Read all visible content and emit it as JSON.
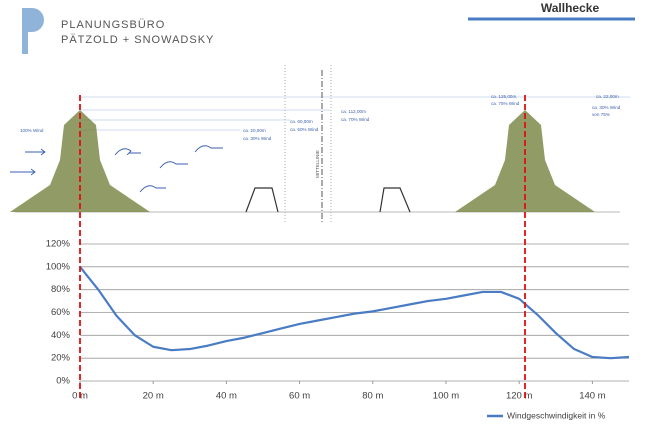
{
  "header": {
    "company_line1": "PLANUNGSBÜRO",
    "company_line2": "PÄTZOLD + SNOWADSKY",
    "title": "Wallhecke"
  },
  "diagram": {
    "notes": [
      "100% Wind",
      "ca. 20,00m",
      "ca. 30% Wind",
      "ca. 60,00m",
      "ca. 50% Wind",
      "ca. 112,00m",
      "ca. 70% Wind",
      "MITTELLINIE",
      "ca. 125,00m",
      "ca. 75% Wind",
      "ca. 22,00m",
      "ca. 30% Wind",
      "von 75%"
    ]
  },
  "chart_data": {
    "type": "line",
    "x": [
      0,
      5,
      10,
      15,
      20,
      25,
      30,
      35,
      40,
      45,
      50,
      55,
      60,
      65,
      70,
      75,
      80,
      85,
      90,
      95,
      100,
      105,
      110,
      115,
      120,
      125,
      130,
      135,
      140,
      145,
      150
    ],
    "series": [
      {
        "name": "Windgeschwindigkeit in %",
        "color": "#4a7cc4",
        "values": [
          100,
          80,
          57,
          40,
          30,
          27,
          28,
          31,
          35,
          38,
          42,
          46,
          50,
          53,
          56,
          59,
          61,
          64,
          67,
          70,
          72,
          75,
          78,
          78,
          72,
          58,
          42,
          28,
          21,
          20,
          21
        ]
      }
    ],
    "xlim": [
      0,
      150
    ],
    "ylim": [
      0,
      120
    ],
    "xticks": [
      {
        "value": 0,
        "label": "0 m"
      },
      {
        "value": 20,
        "label": "20 m"
      },
      {
        "value": 40,
        "label": "40 m"
      },
      {
        "value": 60,
        "label": "60 m"
      },
      {
        "value": 80,
        "label": "80 m"
      },
      {
        "value": 100,
        "label": "100 m"
      },
      {
        "value": 120,
        "label": "120 m"
      },
      {
        "value": 140,
        "label": "140 m"
      }
    ],
    "yticks": [
      {
        "value": 0,
        "label": "0%"
      },
      {
        "value": 20,
        "label": "20%"
      },
      {
        "value": 40,
        "label": "40%"
      },
      {
        "value": 60,
        "label": "60%"
      },
      {
        "value": 80,
        "label": "80%"
      },
      {
        "value": 100,
        "label": "100%"
      },
      {
        "value": 120,
        "label": "120%"
      }
    ],
    "grid": true,
    "legend": "bottom-right"
  }
}
